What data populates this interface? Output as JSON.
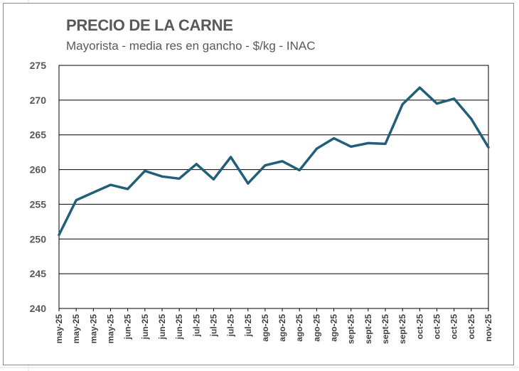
{
  "chart_data": {
    "type": "line",
    "title": "PRECIO DE LA CARNE",
    "subtitle": "Mayorista - media res en gancho - $/kg - INAC",
    "xlabel": "",
    "ylabel": "",
    "ylim": [
      240,
      275
    ],
    "yticks": [
      240,
      245,
      250,
      255,
      260,
      265,
      270,
      275
    ],
    "grid": true,
    "legend": "none",
    "line_color": "#215F79",
    "categories": [
      "may-25",
      "may-25",
      "may-25",
      "may-25",
      "jun-25",
      "jun-25",
      "jun-25",
      "jun-25",
      "jul-25",
      "jul-25",
      "jul-25",
      "jul-25",
      "ago-25",
      "ago-25",
      "ago-25",
      "ago-25",
      "ago-25",
      "sept-25",
      "sept-25",
      "sept-25",
      "sept-25",
      "oct-25",
      "oct-25",
      "oct-25",
      "oct-25",
      "nov-25"
    ],
    "values": [
      250.6,
      255.6,
      256.7,
      257.8,
      257.2,
      259.8,
      259.0,
      258.7,
      260.8,
      258.6,
      261.8,
      258.0,
      260.6,
      261.2,
      259.9,
      263.0,
      264.5,
      263.3,
      263.8,
      263.7,
      269.4,
      271.8,
      269.5,
      270.2,
      267.3,
      263.2
    ]
  }
}
